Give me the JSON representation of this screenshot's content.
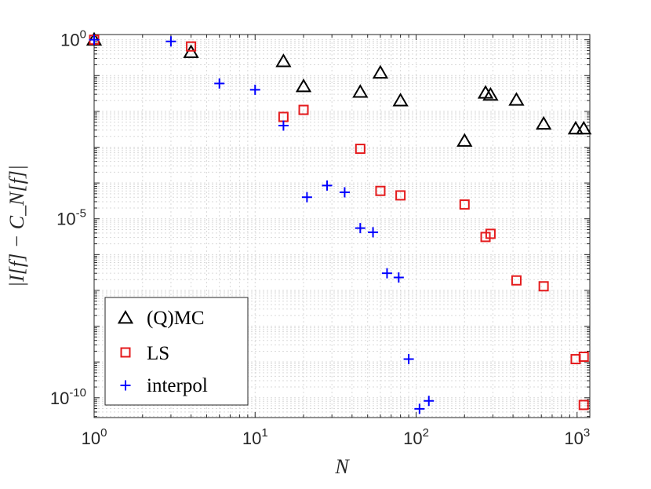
{
  "chart_data": {
    "type": "scatter",
    "title": "",
    "xlabel": "N",
    "ylabel": "|I[f] − C_N[f]|",
    "xscale": "log",
    "yscale": "log",
    "xlim": [
      1,
      1200
    ],
    "ylim": [
      2.8e-11,
      1.4
    ],
    "grid": true,
    "legend_position": "bottom-left",
    "x_ticks": [
      {
        "value": 1,
        "base": "10",
        "exp": "0"
      },
      {
        "value": 10,
        "base": "10",
        "exp": "1"
      },
      {
        "value": 100,
        "base": "10",
        "exp": "2"
      },
      {
        "value": 1000,
        "base": "10",
        "exp": "3"
      }
    ],
    "y_ticks": [
      {
        "value": 1e-10,
        "base": "10",
        "exp": "-10"
      },
      {
        "value": 1e-05,
        "base": "10",
        "exp": "-5"
      },
      {
        "value": 1,
        "base": "10",
        "exp": "0"
      }
    ],
    "series": [
      {
        "name": "(Q)MC",
        "marker": "triangle",
        "color": "#000000",
        "points": [
          {
            "x": 1,
            "y": 1.0
          },
          {
            "x": 4,
            "y": 0.45
          },
          {
            "x": 15,
            "y": 0.25
          },
          {
            "x": 20,
            "y": 0.05
          },
          {
            "x": 45,
            "y": 0.035
          },
          {
            "x": 60,
            "y": 0.12
          },
          {
            "x": 80,
            "y": 0.02
          },
          {
            "x": 200,
            "y": 0.0015
          },
          {
            "x": 270,
            "y": 0.033
          },
          {
            "x": 290,
            "y": 0.029
          },
          {
            "x": 420,
            "y": 0.021
          },
          {
            "x": 620,
            "y": 0.0045
          },
          {
            "x": 980,
            "y": 0.0033
          },
          {
            "x": 1100,
            "y": 0.0033
          }
        ]
      },
      {
        "name": "LS",
        "marker": "square",
        "color": "#e41a1c",
        "points": [
          {
            "x": 1,
            "y": 1.0
          },
          {
            "x": 4,
            "y": 0.65
          },
          {
            "x": 15,
            "y": 0.007
          },
          {
            "x": 20,
            "y": 0.011
          },
          {
            "x": 45,
            "y": 0.0009
          },
          {
            "x": 60,
            "y": 6e-05
          },
          {
            "x": 80,
            "y": 4.5e-05
          },
          {
            "x": 200,
            "y": 2.5e-05
          },
          {
            "x": 270,
            "y": 3.1e-06
          },
          {
            "x": 290,
            "y": 3.8e-06
          },
          {
            "x": 420,
            "y": 1.9e-07
          },
          {
            "x": 620,
            "y": 1.3e-07
          },
          {
            "x": 980,
            "y": 1.2e-09
          },
          {
            "x": 1100,
            "y": 1.4e-09
          },
          {
            "x": 1100,
            "y": 6.3e-11
          }
        ]
      },
      {
        "name": "interpol",
        "marker": "plus",
        "color": "#0000ff",
        "points": [
          {
            "x": 1,
            "y": 1.0
          },
          {
            "x": 3,
            "y": 0.9
          },
          {
            "x": 6,
            "y": 0.06
          },
          {
            "x": 10,
            "y": 0.04
          },
          {
            "x": 15,
            "y": 0.004
          },
          {
            "x": 21,
            "y": 4e-05
          },
          {
            "x": 28,
            "y": 8.5e-05
          },
          {
            "x": 36,
            "y": 5.5e-05
          },
          {
            "x": 45,
            "y": 5.5e-06
          },
          {
            "x": 54,
            "y": 4.2e-06
          },
          {
            "x": 66,
            "y": 3e-07
          },
          {
            "x": 78,
            "y": 2.3e-07
          },
          {
            "x": 90,
            "y": 1.2e-09
          },
          {
            "x": 105,
            "y": 4.9e-11
          },
          {
            "x": 120,
            "y": 8.2e-11
          }
        ]
      }
    ]
  }
}
